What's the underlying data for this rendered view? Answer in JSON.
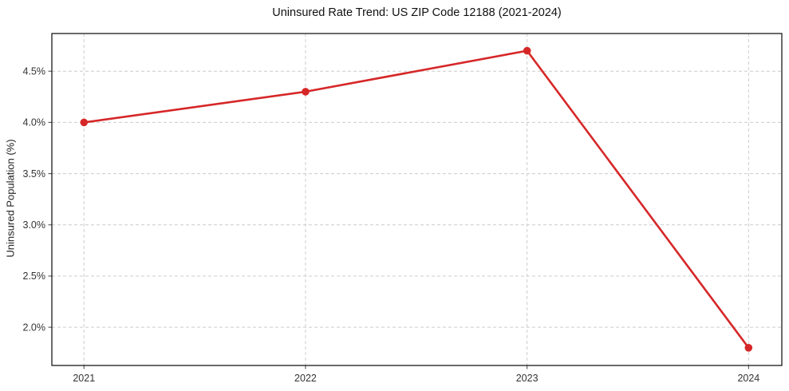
{
  "figure": {
    "background": "#ffffff"
  },
  "chart_data": {
    "type": "line",
    "title": "Uninsured Rate Trend: US ZIP Code 12188 (2021-2024)",
    "xlabel": "",
    "ylabel": "Uninsured Population (%)",
    "x": [
      2021,
      2022,
      2023,
      2024
    ],
    "series": [
      {
        "name": "Uninsured rate",
        "values": [
          4.0,
          4.3,
          4.7,
          1.8
        ]
      }
    ],
    "xtick_labels": [
      "2021",
      "2022",
      "2023",
      "2024"
    ],
    "ytick_values": [
      2.0,
      2.5,
      3.0,
      3.5,
      4.0,
      4.5
    ],
    "ytick_labels": [
      "2.0%",
      "2.5%",
      "3.0%",
      "3.5%",
      "4.0%",
      "4.5%"
    ],
    "xlim": [
      2020.855,
      2024.15
    ],
    "ylim": [
      1.627,
      4.868
    ],
    "grid": true,
    "grid_style": "dashed",
    "legend": false,
    "line_color": "#d62728",
    "marker": "circle",
    "colors": {
      "grid": "#cccccc",
      "axis_border": "#1a1a1a",
      "tick_mark": "#555555",
      "tick_text": "#333333",
      "title_text": "#111111"
    }
  }
}
